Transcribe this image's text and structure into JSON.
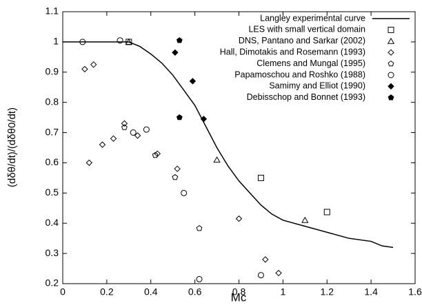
{
  "chart_data": {
    "type": "scatter",
    "xlabel": "Mc",
    "ylabel": "(dδθ/dt)/(dδθ0/dt)",
    "xlim": [
      0,
      1.6
    ],
    "ylim": [
      0.2,
      1.1
    ],
    "xticks": [
      0,
      0.2,
      0.4,
      0.6,
      0.8,
      1,
      1.2,
      1.4,
      1.6
    ],
    "yticks": [
      0.2,
      0.3,
      0.4,
      0.5,
      0.6,
      0.7,
      0.8,
      0.9,
      1,
      1.1
    ],
    "legend": "top-right",
    "series": [
      {
        "name": "Langley experimental curve",
        "marker": "line",
        "color": "#000000",
        "x": [
          0,
          0.1,
          0.2,
          0.3,
          0.35,
          0.4,
          0.45,
          0.5,
          0.55,
          0.6,
          0.65,
          0.7,
          0.75,
          0.8,
          0.85,
          0.9,
          0.95,
          1.0,
          1.1,
          1.2,
          1.3,
          1.4,
          1.45,
          1.5
        ],
        "values": [
          1,
          1,
          1,
          1,
          0.985,
          0.96,
          0.93,
          0.89,
          0.84,
          0.79,
          0.72,
          0.65,
          0.59,
          0.54,
          0.5,
          0.46,
          0.43,
          0.41,
          0.39,
          0.37,
          0.35,
          0.34,
          0.325,
          0.32
        ]
      },
      {
        "name": "LES with small vertical domain",
        "marker": "square",
        "color": "#000000",
        "x": [
          0.3,
          0.9,
          1.2
        ],
        "values": [
          1.0,
          0.55,
          0.437
        ]
      },
      {
        "name": "DNS, Pantano and Sarkar (2002)",
        "marker": "triangle",
        "color": "#000000",
        "x": [
          0.3,
          0.7,
          1.1
        ],
        "values": [
          1.0,
          0.61,
          0.41
        ]
      },
      {
        "name": "Hall, Dimotakis and Rosemann (1993)",
        "marker": "diamond",
        "color": "#000000",
        "x": [
          0.1,
          0.14,
          0.12,
          0.18,
          0.23,
          0.28,
          0.34,
          0.43,
          0.52,
          0.8,
          0.92,
          0.98
        ],
        "values": [
          0.91,
          0.925,
          0.6,
          0.66,
          0.68,
          0.73,
          0.69,
          0.63,
          0.58,
          0.415,
          0.28,
          0.235
        ]
      },
      {
        "name": "Clemens and Mungal (1995)",
        "marker": "pentagon",
        "color": "#000000",
        "x": [
          0.28,
          0.42,
          0.51,
          0.62
        ],
        "values": [
          0.717,
          0.625,
          0.552,
          0.383
        ]
      },
      {
        "name": "Papamoschou and Roshko (1988)",
        "marker": "circle",
        "color": "#000000",
        "x": [
          0.09,
          0.26,
          0.32,
          0.38,
          0.55,
          0.62,
          0.9
        ],
        "values": [
          1.0,
          1.005,
          0.7,
          0.71,
          0.5,
          0.215,
          0.228
        ]
      },
      {
        "name": "Samimy and Elliot (1990)",
        "marker": "diamond-filled",
        "color": "#000000",
        "x": [
          0.51,
          0.59,
          0.64
        ],
        "values": [
          0.965,
          0.87,
          0.745
        ]
      },
      {
        "name": "Debisschop and Bonnet (1993)",
        "marker": "pentagon-filled",
        "color": "#000000",
        "x": [
          0.53,
          0.53
        ],
        "values": [
          1.005,
          0.75
        ]
      }
    ]
  }
}
